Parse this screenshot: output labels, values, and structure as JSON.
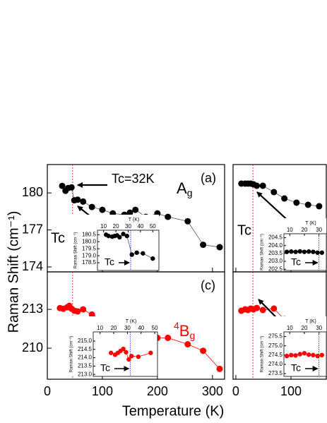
{
  "chart_data": [
    {
      "type": "line",
      "panel_label": "(a)",
      "annotation": {
        "label": "A",
        "subscript": "g"
      },
      "tc_label": "Tc",
      "arrow_label": "Tc=32K",
      "y_label": "Raman Shift (cm⁻¹)",
      "xlim": [
        0,
        322
      ],
      "ylim": [
        173.6,
        182.3
      ],
      "yticks": [
        174,
        177,
        180
      ],
      "vline": 46,
      "color": "#000000",
      "x": [
        27,
        33,
        38,
        44,
        49,
        55,
        65,
        81,
        100,
        119,
        140,
        150,
        160,
        179,
        200,
        219,
        255,
        283,
        313
      ],
      "values": [
        180.57,
        180.17,
        180.4,
        180.45,
        179.4,
        179.45,
        179.3,
        178.86,
        178.63,
        178.34,
        178.23,
        178.4,
        178.63,
        178.06,
        178.34,
        178.06,
        177.7,
        175.8,
        175.6
      ],
      "inset": {
        "x_label": "T (K)",
        "y_label": "Raman Shift (cm⁻¹)",
        "tc_label": "Tc",
        "xlim": [
          5,
          55
        ],
        "xticks": [
          10,
          20,
          30,
          40,
          50
        ],
        "ylim": [
          177.95,
          180.82
        ],
        "yticks": [
          180.5,
          {
            "value": 180,
            "label": "180.0"
          },
          179.5,
          {
            "value": 179,
            "label": "179.0"
          },
          178.5
        ],
        "vline": 32,
        "color": "#000000",
        "x": [
          12,
          14,
          17,
          19,
          21,
          23,
          26,
          29,
          33,
          37,
          42,
          50
        ],
        "values": [
          180.5,
          180.41,
          180.36,
          180.41,
          180.45,
          180.32,
          180.55,
          180.41,
          179.08,
          179.22,
          179.17,
          178.8
        ]
      }
    },
    {
      "type": "line",
      "panel_label": "(c)",
      "annotation": {
        "superscript": "4",
        "label": "B",
        "subscript": "g"
      },
      "x_label": "Temperature (K)",
      "xlim": [
        0,
        322
      ],
      "xticks": [
        0,
        100,
        200,
        300
      ],
      "ylim": [
        207.6,
        215.9
      ],
      "yticks": [
        210,
        213
      ],
      "vline": 46,
      "color": "#ff0000",
      "x": [
        23,
        29,
        36,
        40,
        44,
        49,
        55,
        65,
        81,
        100,
        119,
        140,
        160,
        179,
        200,
        219,
        255,
        283,
        313
      ],
      "values": [
        213.1,
        213.05,
        213.16,
        213.27,
        213.05,
        212.9,
        212.84,
        213,
        212.6,
        212.2,
        212,
        211.6,
        211.5,
        211.3,
        210.8,
        210.8,
        210.3,
        209.8,
        208.4
      ],
      "inset": {
        "x_label": "T (K)",
        "y_label": "Raman Shift (cm⁻¹)",
        "tc_label": "Tc",
        "xlim": [
          5,
          52
        ],
        "xticks": [
          10,
          20,
          30,
          40,
          50
        ],
        "ylim": [
          212.88,
          215.55
        ],
        "yticks": [
          {
            "value": 215,
            "label": "215.0"
          },
          214.5,
          {
            "value": 214,
            "label": "214.0"
          },
          213.5,
          {
            "value": 213,
            "label": "213.0"
          }
        ],
        "vline": 32,
        "color": "#ff0000",
        "x": [
          18,
          21,
          23,
          25,
          27,
          29,
          31,
          33,
          38,
          47
        ],
        "values": [
          214.29,
          214.18,
          214.29,
          214.41,
          214.53,
          214.33,
          213.9,
          214.1,
          214.06,
          214.29
        ]
      }
    },
    {
      "type": "line",
      "tc_label": "Tc",
      "xlim": [
        -5,
        164
      ],
      "ylim": [
        196,
        208
      ],
      "vline": 31,
      "color": "#000000",
      "x": [
        10,
        17,
        22,
        27,
        32,
        38,
        49,
        69,
        88,
        110,
        131,
        151
      ],
      "values": [
        205.87,
        205.87,
        205.87,
        205.87,
        205.79,
        205.63,
        205.63,
        204.92,
        204.21,
        203.74,
        203.5,
        203.34
      ],
      "inset": {
        "x_label": "T (K)",
        "y_label": "Raman Shift (cm⁻¹)",
        "tc_label": "Tc",
        "xlim": [
          6,
          35
        ],
        "xticks": [
          10,
          20,
          30
        ],
        "ylim": [
          202.42,
          204.75
        ],
        "yticks": [
          204.5,
          {
            "value": 204,
            "label": "204.0"
          },
          203.5,
          {
            "value": 203,
            "label": "203.0"
          },
          202.5
        ],
        "vline": 30,
        "color": "#000000",
        "x": [
          8,
          11,
          14,
          17,
          20,
          23,
          26,
          29,
          32
        ],
        "values": [
          203.6,
          203.62,
          203.6,
          203.63,
          203.6,
          203.62,
          203.6,
          203.55,
          203.55
        ]
      }
    },
    {
      "type": "line",
      "xlim": [
        -5,
        164
      ],
      "xticks": [
        0,
        100
      ],
      "ylim": [
        270,
        280
      ],
      "vline": 31,
      "color": "#ff0000",
      "x": [
        10,
        17,
        22,
        27,
        32,
        38,
        49,
        69,
        88,
        110,
        131,
        151
      ],
      "values": [
        276.38,
        276.51,
        276.45,
        276.58,
        276.51,
        276.64,
        276.45,
        276.58,
        275.59,
        275.2,
        274.41,
        273.88
      ],
      "inset": {
        "x_label": "T (K)",
        "y_label": "Raman Shift (cm⁻¹)",
        "tc_label": "Tc",
        "xlim": [
          6,
          35
        ],
        "xticks": [
          10,
          20,
          30
        ],
        "ylim": [
          273.35,
          275.75
        ],
        "yticks": [
          275.5,
          {
            "value": 275,
            "label": "275.0"
          },
          274.5,
          {
            "value": 274,
            "label": "274.0"
          },
          273.5
        ],
        "vline": 30,
        "color": "#ff0000",
        "x": [
          8,
          11,
          14,
          17,
          20,
          23,
          26,
          29,
          32
        ],
        "values": [
          274.45,
          274.5,
          274.48,
          274.55,
          274.6,
          274.52,
          274.5,
          274.45,
          274.5
        ]
      }
    }
  ]
}
